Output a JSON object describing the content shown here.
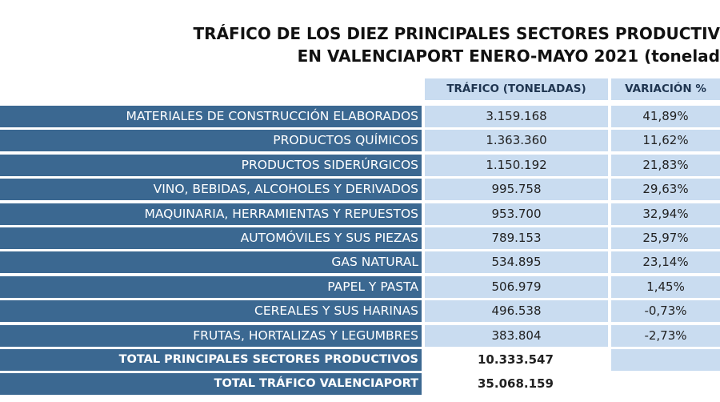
{
  "header": {
    "title_lines": [
      "TRÁFICO DE LOS DIEZ PRINCIPALES SECTORES PRODUCTIV",
      "EN VALENCIAPORT ENERO-MAYO 2021 (tonelad"
    ]
  },
  "table": {
    "columns": [
      "TRÁFICO (TONELADAS)",
      "VARIACIÓN %"
    ],
    "rows": [
      [
        "MATERIALES DE CONSTRUCCIÓN ELABORADOS",
        "3.159.168",
        "41,89%"
      ],
      [
        "PRODUCTOS QUÍMICOS",
        "1.363.360",
        "11,62%"
      ],
      [
        "PRODUCTOS SIDERÚRGICOS",
        "1.150.192",
        "21,83%"
      ],
      [
        "VINO, BEBIDAS, ALCOHOLES Y DERIVADOS",
        "995.758",
        "29,63%"
      ],
      [
        "MAQUINARIA, HERRAMIENTAS Y REPUESTOS",
        "953.700",
        "32,94%"
      ],
      [
        "AUTOMÓVILES Y SUS PIEZAS",
        "789.153",
        "25,97%"
      ],
      [
        "GAS NATURAL",
        "534.895",
        "23,14%"
      ],
      [
        "PAPEL Y PASTA",
        "506.979",
        "1,45%"
      ],
      [
        "CEREALES Y SUS HARINAS",
        "496.538",
        "-0,73%"
      ],
      [
        "FRUTAS, HORTALIZAS Y LEGUMBRES",
        "383.804",
        "-2,73%"
      ]
    ],
    "totals": [
      [
        "TOTAL PRINCIPALES SECTORES PRODUCTIVOS",
        "10.333.547"
      ],
      [
        "TOTAL TRÁFICO VALENCIAPORT",
        "35.068.159"
      ]
    ]
  }
}
